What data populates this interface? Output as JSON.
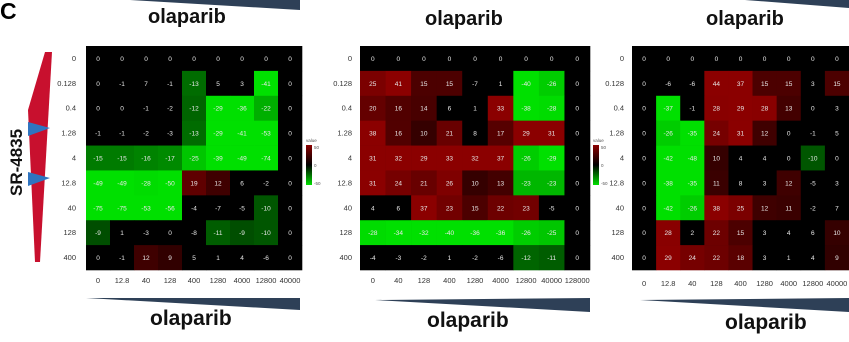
{
  "figure": {
    "panel_letter": "C",
    "drug_x": "olaparib",
    "drug_y": "SR-4835",
    "colorbar_title": "value",
    "colorbar_top": "50",
    "colorbar_mid": "0",
    "colorbar_bottom": "-50",
    "colors": {
      "positive": "#8b0000",
      "zero": "#000000",
      "negative": "#00e000"
    }
  },
  "chart_data": [
    {
      "type": "heatmap",
      "ylabel": "SR-4835",
      "xlabel": "olaparib",
      "rows": [
        "0",
        "0.128",
        "0.4",
        "1.28",
        "4",
        "12.8",
        "40",
        "128",
        "400"
      ],
      "cols": [
        "0",
        "12.8",
        "40",
        "128",
        "400",
        "1280",
        "4000",
        "12800",
        "40000"
      ],
      "values": [
        [
          0,
          0,
          0,
          0,
          0,
          0,
          0,
          0,
          0
        ],
        [
          0,
          -1,
          7,
          -1,
          -13,
          5,
          3,
          -41,
          0
        ],
        [
          0,
          0,
          -1,
          -2,
          -12,
          -29,
          -36,
          -22,
          0
        ],
        [
          -1,
          -1,
          -2,
          -3,
          -13,
          -29,
          -41,
          -53,
          0
        ],
        [
          -15,
          -15,
          -16,
          -17,
          -25,
          -39,
          -49,
          -74,
          0
        ],
        [
          -49,
          -49,
          -28,
          -50,
          19,
          12,
          6,
          -2,
          0
        ],
        [
          -75,
          -75,
          -53,
          -56,
          -4,
          -7,
          -5,
          -10,
          0
        ],
        [
          -9,
          1,
          -3,
          0,
          -8,
          -11,
          -9,
          -10,
          0
        ],
        [
          0,
          -1,
          12,
          9,
          5,
          1,
          4,
          -6,
          0
        ]
      ]
    },
    {
      "type": "heatmap",
      "xlabel": "olaparib",
      "rows": [
        "0",
        "0.128",
        "0.4",
        "1.28",
        "4",
        "12.8",
        "40",
        "128",
        "400"
      ],
      "cols": [
        "0",
        "40",
        "128",
        "400",
        "1280",
        "4000",
        "12800",
        "40000",
        "128000"
      ],
      "values": [
        [
          0,
          0,
          0,
          0,
          0,
          0,
          0,
          0,
          0
        ],
        [
          25,
          41,
          15,
          15,
          -7,
          1,
          -40,
          -26,
          0
        ],
        [
          20,
          16,
          14,
          6,
          1,
          33,
          -38,
          -28,
          0
        ],
        [
          38,
          16,
          10,
          21,
          8,
          17,
          29,
          31,
          0
        ],
        [
          31,
          32,
          29,
          33,
          32,
          37,
          -26,
          -29,
          0
        ],
        [
          31,
          24,
          21,
          26,
          10,
          13,
          -23,
          -23,
          0
        ],
        [
          4,
          6,
          37,
          23,
          15,
          22,
          23,
          -5,
          0
        ],
        [
          -28,
          -34,
          -32,
          -40,
          -36,
          -36,
          -26,
          -25,
          0
        ],
        [
          -4,
          -3,
          -2,
          1,
          -2,
          -6,
          -12,
          -11,
          0
        ]
      ]
    },
    {
      "type": "heatmap",
      "xlabel": "olaparib",
      "rows": [
        "0",
        "0.128",
        "0.4",
        "1.28",
        "4",
        "12.8",
        "40",
        "128",
        "400"
      ],
      "cols": [
        "0",
        "12.8",
        "40",
        "128",
        "400",
        "1280",
        "4000",
        "12800",
        "40000"
      ],
      "values": [
        [
          0,
          0,
          0,
          0,
          0,
          0,
          0,
          0,
          0
        ],
        [
          0,
          -6,
          -6,
          44,
          37,
          15,
          15,
          3,
          15
        ],
        [
          0,
          -37,
          -1,
          28,
          29,
          28,
          13,
          0,
          3
        ],
        [
          0,
          -26,
          -35,
          24,
          31,
          12,
          0,
          -1,
          5
        ],
        [
          0,
          -42,
          -48,
          10,
          4,
          4,
          0,
          -10,
          0
        ],
        [
          0,
          -38,
          -35,
          11,
          8,
          3,
          12,
          -5,
          3
        ],
        [
          0,
          -42,
          -26,
          38,
          25,
          12,
          11,
          -2,
          7
        ],
        [
          0,
          28,
          2,
          22,
          15,
          3,
          4,
          6,
          10
        ],
        [
          0,
          29,
          24,
          22,
          18,
          3,
          1,
          4,
          9
        ]
      ]
    }
  ]
}
